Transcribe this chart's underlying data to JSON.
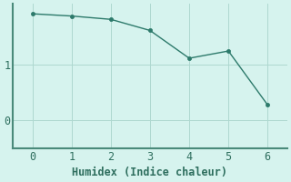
{
  "x": [
    0,
    1,
    2,
    3,
    4,
    5,
    6
  ],
  "y": [
    1.92,
    1.88,
    1.82,
    1.62,
    1.12,
    1.25,
    0.28
  ],
  "line_color": "#2d7a6b",
  "marker_color": "#2d7a6b",
  "bg_color": "#d6f3ee",
  "grid_color": "#aed8d0",
  "axis_color": "#4a8a7a",
  "xlabel": "Humidex (Indice chaleur)",
  "xlim": [
    -0.5,
    6.5
  ],
  "ylim": [
    -0.5,
    2.1
  ],
  "xticks": [
    0,
    1,
    2,
    3,
    4,
    5,
    6
  ],
  "yticks": [
    0,
    1
  ],
  "font_color": "#2e6e5e",
  "font_size": 8.5
}
